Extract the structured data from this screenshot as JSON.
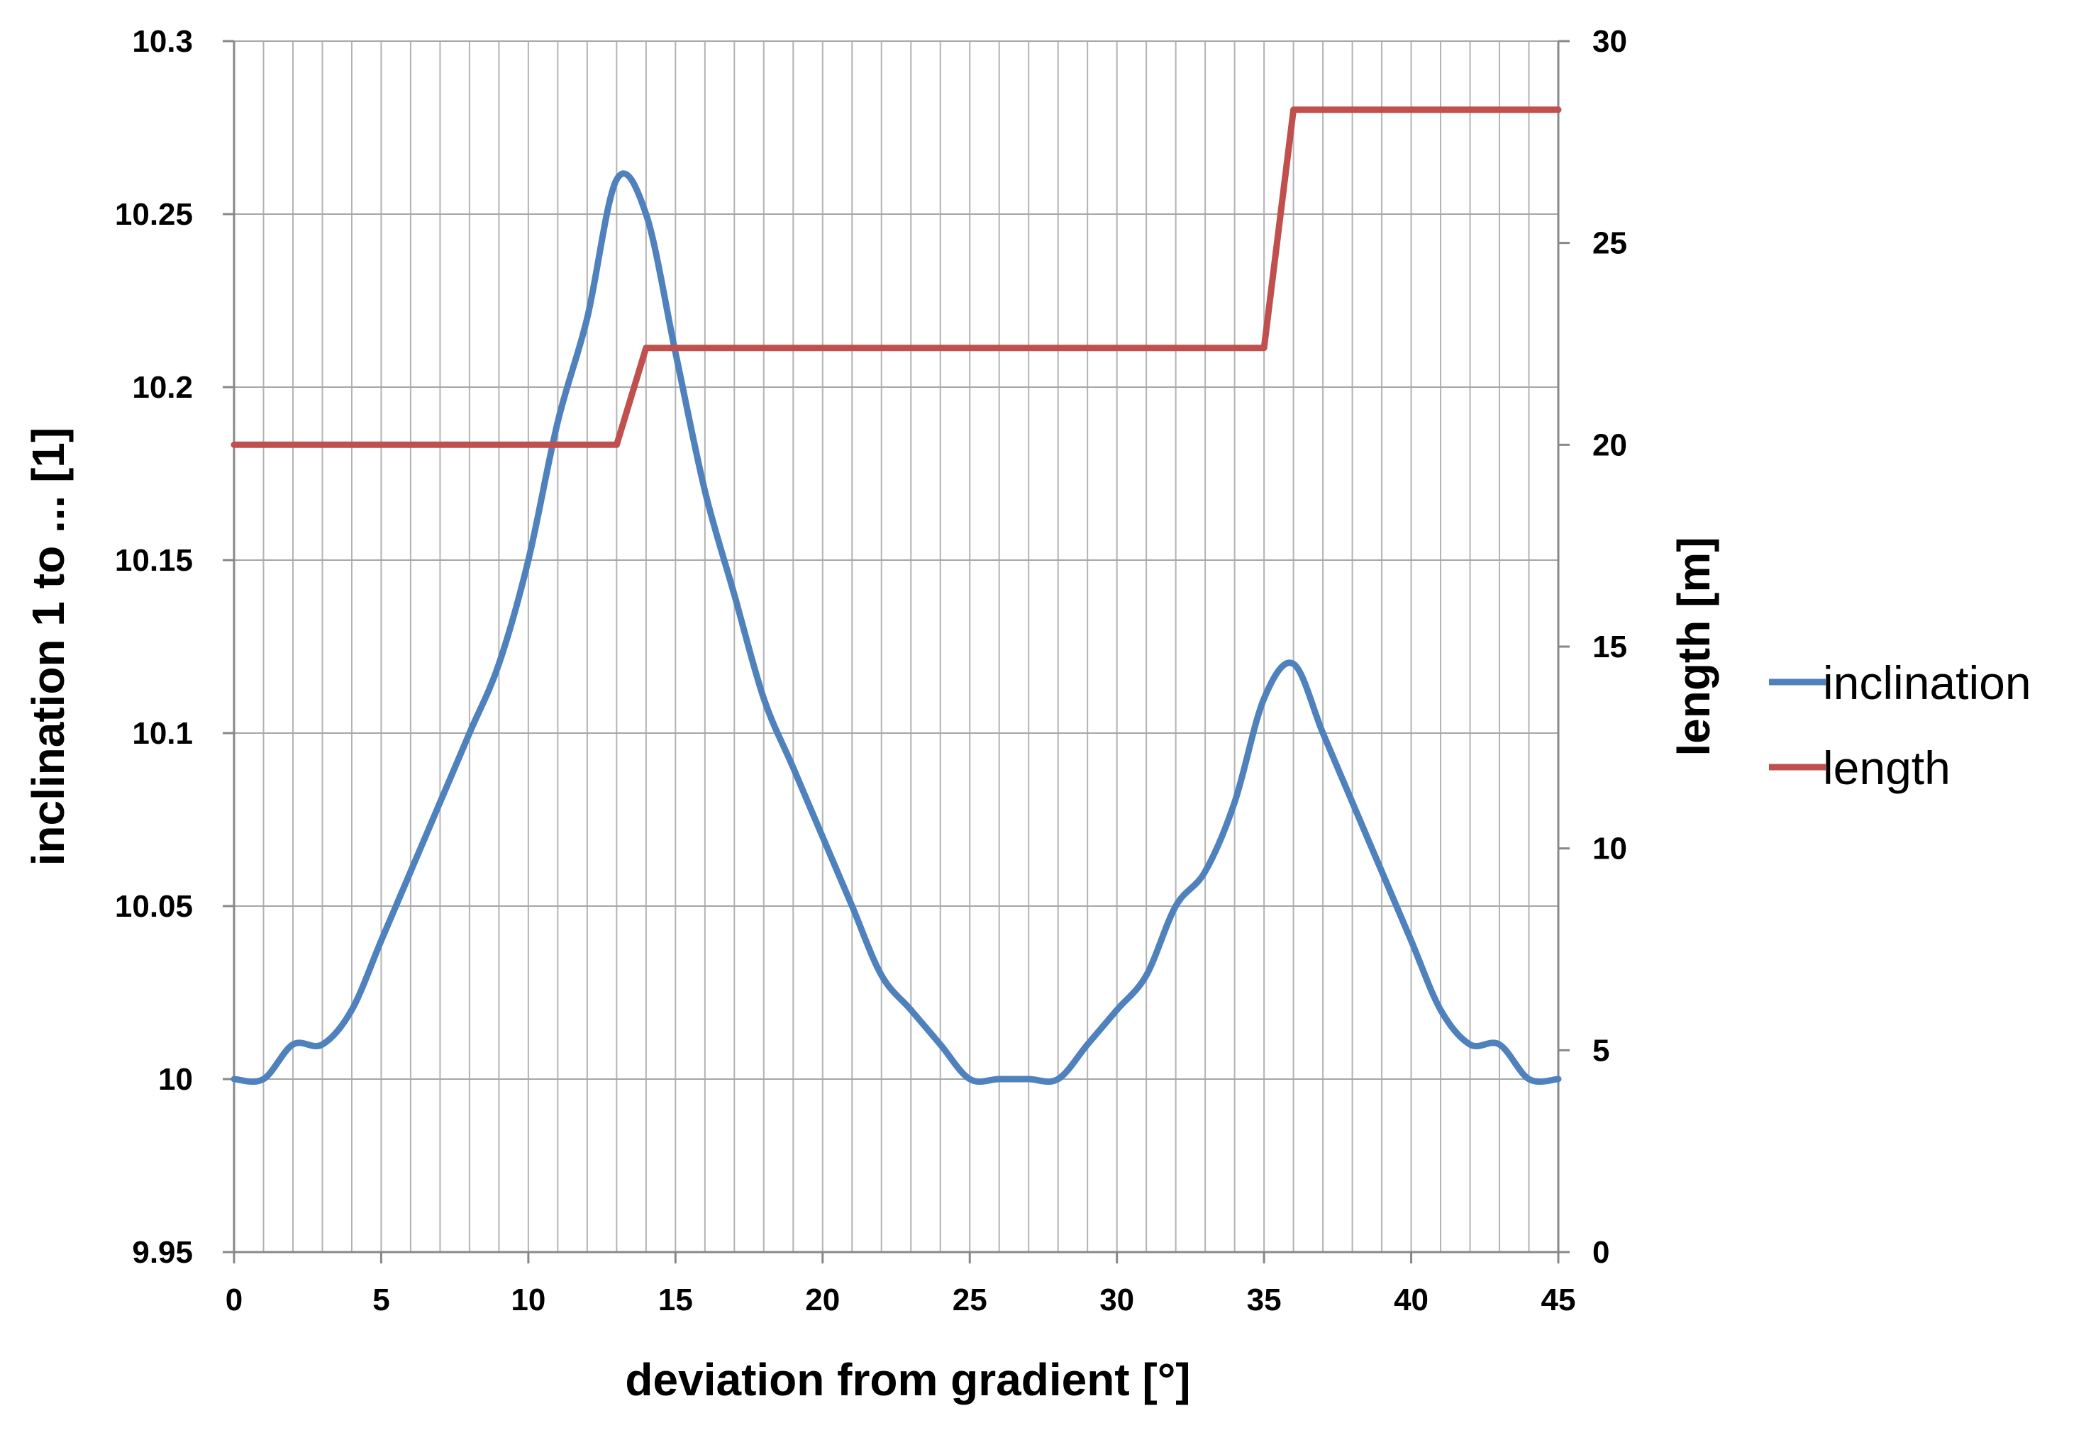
{
  "chart_data": {
    "type": "line",
    "xlabel": "deviation from gradient [°]",
    "ylabel_left": "inclination 1 to ... [1]",
    "ylabel_right": "length [m]",
    "xlim": [
      0,
      45
    ],
    "ylim_left": [
      9.95,
      10.3
    ],
    "ylim_right": [
      0,
      30
    ],
    "x_ticks": [
      "0",
      "5",
      "10",
      "15",
      "20",
      "25",
      "30",
      "35",
      "40",
      "45"
    ],
    "y_left_ticks": [
      "9.95",
      "10",
      "10.05",
      "10.1",
      "10.15",
      "10.2",
      "10.25",
      "10.3"
    ],
    "y_right_ticks": [
      "0",
      "5",
      "10",
      "15",
      "20",
      "25",
      "30"
    ],
    "grid": true,
    "legend_position": "right",
    "series": [
      {
        "name": "inclination",
        "axis": "left",
        "color": "#4F81BD",
        "x": [
          0,
          1,
          2,
          3,
          4,
          5,
          6,
          7,
          8,
          9,
          10,
          11,
          12,
          13,
          14,
          15,
          16,
          17,
          18,
          19,
          20,
          21,
          22,
          23,
          24,
          25,
          26,
          27,
          28,
          29,
          30,
          31,
          32,
          33,
          34,
          35,
          36,
          37,
          38,
          39,
          40,
          41,
          42,
          43,
          44,
          45
        ],
        "values": [
          10.0,
          10.0,
          10.01,
          10.01,
          10.02,
          10.04,
          10.06,
          10.08,
          10.1,
          10.12,
          10.15,
          10.19,
          10.22,
          10.26,
          10.25,
          10.21,
          10.17,
          10.14,
          10.11,
          10.09,
          10.07,
          10.05,
          10.03,
          10.02,
          10.01,
          10.0,
          10.0,
          10.0,
          10.0,
          10.01,
          10.02,
          10.03,
          10.05,
          10.06,
          10.08,
          10.11,
          10.12,
          10.1,
          10.08,
          10.06,
          10.04,
          10.02,
          10.01,
          10.01,
          10.0,
          10.0
        ]
      },
      {
        "name": "length",
        "axis": "right",
        "color": "#C0504D",
        "x": [
          0,
          13,
          14,
          35,
          36,
          45
        ],
        "values": [
          20,
          20,
          22.4,
          22.4,
          28.3,
          28.3
        ]
      }
    ]
  }
}
